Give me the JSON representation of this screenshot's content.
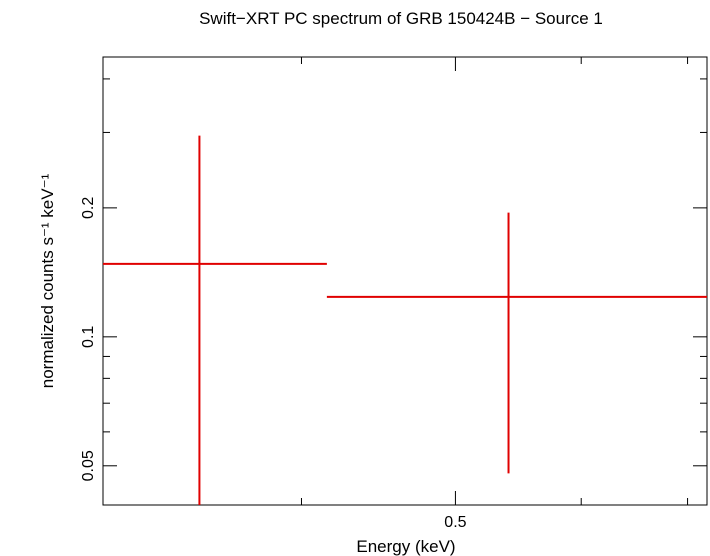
{
  "chart_data": {
    "type": "scatter",
    "title": "Swift−XRT PC spectrum of GRB 150424B − Source 1",
    "xlabel": "Energy (keV)",
    "ylabel": "normalized counts s⁻¹ keV⁻¹",
    "x_scale": "log",
    "y_scale": "log",
    "xlim": [
      0.3,
      0.72
    ],
    "ylim": [
      0.0405,
      0.45
    ],
    "x_ticks": [
      {
        "value": 0.5,
        "label": "0.5"
      }
    ],
    "y_ticks": [
      {
        "value": 0.05,
        "label": "0.05"
      },
      {
        "value": 0.1,
        "label": "0.1"
      },
      {
        "value": 0.2,
        "label": "0.2"
      }
    ],
    "x_minor_ticks": [
      0.4,
      0.6,
      0.7
    ],
    "y_minor_ticks": [
      0.06,
      0.07,
      0.08,
      0.09,
      0.3,
      0.4
    ],
    "series": [
      {
        "color": "#e00000",
        "points": [
          {
            "x": 0.345,
            "x_low": 0.3,
            "x_high": 0.415,
            "y": 0.148,
            "y_low": 0.0405,
            "y_high": 0.295
          },
          {
            "x": 0.54,
            "x_low": 0.415,
            "x_high": 0.72,
            "y": 0.124,
            "y_low": 0.048,
            "y_high": 0.195
          }
        ]
      }
    ]
  }
}
